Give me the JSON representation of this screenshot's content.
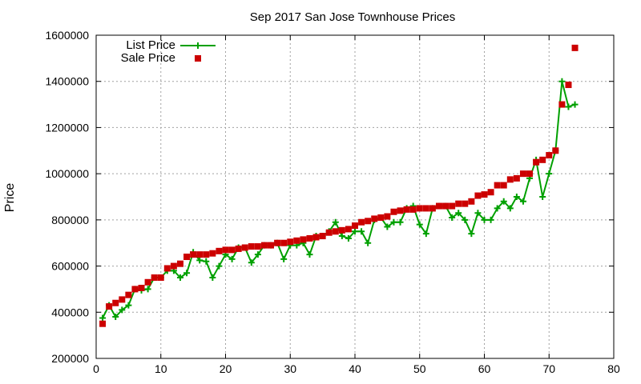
{
  "chart_data": {
    "type": "scatter",
    "title": "Sep 2017 San Jose Townhouse Prices",
    "xlabel": "",
    "ylabel": "Price",
    "xlim": [
      0,
      80
    ],
    "ylim": [
      200000,
      1600000
    ],
    "x_ticks": [
      0,
      10,
      20,
      30,
      40,
      50,
      60,
      70,
      80
    ],
    "y_ticks": [
      200000,
      400000,
      600000,
      800000,
      1000000,
      1200000,
      1400000,
      1600000
    ],
    "grid": true,
    "legend_position": "top-left",
    "series": [
      {
        "name": "List Price",
        "style": "line-with-plus-markers",
        "color": "#00a000",
        "x": [
          1,
          2,
          3,
          4,
          5,
          6,
          7,
          8,
          9,
          10,
          11,
          12,
          13,
          14,
          15,
          16,
          17,
          18,
          19,
          20,
          21,
          22,
          23,
          24,
          25,
          26,
          27,
          28,
          29,
          30,
          31,
          32,
          33,
          34,
          35,
          36,
          37,
          38,
          39,
          40,
          41,
          42,
          43,
          44,
          45,
          46,
          47,
          48,
          49,
          50,
          51,
          52,
          53,
          54,
          55,
          56,
          57,
          58,
          59,
          60,
          61,
          62,
          63,
          64,
          65,
          66,
          67,
          68,
          69,
          70,
          71,
          72,
          73,
          74
        ],
        "values": [
          375000,
          430000,
          380000,
          410000,
          430000,
          500000,
          495000,
          500000,
          550000,
          550000,
          580000,
          580000,
          550000,
          570000,
          660000,
          625000,
          620000,
          550000,
          600000,
          650000,
          630000,
          680000,
          680000,
          615000,
          650000,
          690000,
          690000,
          700000,
          630000,
          690000,
          690000,
          700000,
          650000,
          730000,
          730000,
          750000,
          790000,
          730000,
          720000,
          750000,
          750000,
          700000,
          800000,
          810000,
          770000,
          790000,
          790000,
          850000,
          860000,
          780000,
          740000,
          850000,
          860000,
          860000,
          810000,
          830000,
          800000,
          740000,
          830000,
          800000,
          800000,
          850000,
          880000,
          850000,
          900000,
          880000,
          980000,
          1060000,
          900000,
          1000000,
          1100000,
          1400000,
          1290000,
          1300000
        ]
      },
      {
        "name": "Sale Price",
        "style": "square-markers",
        "color": "#cc0000",
        "x": [
          1,
          2,
          3,
          4,
          5,
          6,
          7,
          8,
          9,
          10,
          11,
          12,
          13,
          14,
          15,
          16,
          17,
          18,
          19,
          20,
          21,
          22,
          23,
          24,
          25,
          26,
          27,
          28,
          29,
          30,
          31,
          32,
          33,
          34,
          35,
          36,
          37,
          38,
          39,
          40,
          41,
          42,
          43,
          44,
          45,
          46,
          47,
          48,
          49,
          50,
          51,
          52,
          53,
          54,
          55,
          56,
          57,
          58,
          59,
          60,
          61,
          62,
          63,
          64,
          65,
          66,
          67,
          68,
          69,
          70,
          71,
          72,
          73,
          74
        ],
        "values": [
          350000,
          425000,
          440000,
          455000,
          475000,
          500000,
          505000,
          530000,
          550000,
          550000,
          590000,
          600000,
          610000,
          640000,
          650000,
          650000,
          650000,
          655000,
          665000,
          670000,
          670000,
          675000,
          680000,
          685000,
          685000,
          690000,
          690000,
          700000,
          700000,
          705000,
          710000,
          715000,
          720000,
          725000,
          730000,
          745000,
          750000,
          755000,
          760000,
          775000,
          790000,
          795000,
          805000,
          810000,
          815000,
          835000,
          840000,
          845000,
          845000,
          850000,
          850000,
          850000,
          860000,
          860000,
          860000,
          870000,
          870000,
          880000,
          905000,
          910000,
          920000,
          950000,
          950000,
          975000,
          980000,
          1000000,
          1000000,
          1050000,
          1060000,
          1080000,
          1100000,
          1300000,
          1385000,
          1545000
        ]
      }
    ]
  }
}
